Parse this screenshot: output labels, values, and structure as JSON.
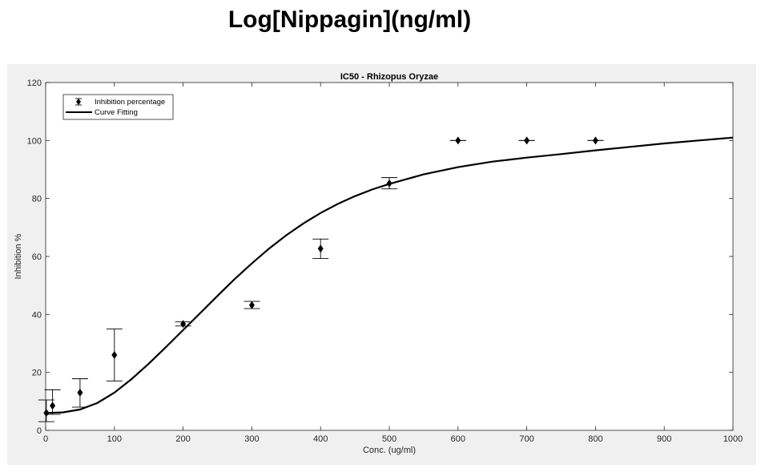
{
  "page": {
    "title": "Log[Nippagin](ng/ml)"
  },
  "chart_data": {
    "type": "scatter",
    "title": "IC50 - Rhizopus Oryzae",
    "xlabel": "Conc. (ug/ml)",
    "ylabel": "Inhibition %",
    "xlim": [
      0,
      1000
    ],
    "ylim": [
      0,
      120
    ],
    "xticks": [
      0,
      100,
      200,
      300,
      400,
      500,
      600,
      700,
      800,
      900,
      1000
    ],
    "yticks": [
      0,
      20,
      40,
      60,
      80,
      100,
      120
    ],
    "grid": false,
    "legend_position": "top-left",
    "legend": [
      "Inhibition percentage",
      "Curve Fitting"
    ],
    "series": [
      {
        "name": "Inhibition percentage",
        "marker": "diamond",
        "x": [
          1,
          10,
          50,
          100,
          200,
          300,
          400,
          500,
          600,
          700,
          800
        ],
        "y": [
          6,
          8.5,
          13,
          26,
          36.7,
          43.2,
          62.7,
          85.2,
          100,
          100,
          100
        ],
        "err_low": [
          3,
          5.5,
          8,
          17,
          36,
          42,
          59.3,
          83.3,
          100,
          100,
          100
        ],
        "err_high": [
          10.5,
          14,
          17.8,
          35,
          37.4,
          44.5,
          66,
          87.2,
          100,
          100,
          100
        ],
        "color": "#000000"
      },
      {
        "name": "Curve Fitting",
        "type": "line",
        "x": [
          0,
          25,
          50,
          75,
          100,
          125,
          150,
          175,
          200,
          225,
          250,
          275,
          300,
          325,
          350,
          375,
          400,
          425,
          450,
          475,
          500,
          550,
          600,
          650,
          700,
          750,
          800,
          850,
          900,
          950,
          1000
        ],
        "y": [
          6,
          6.2,
          7.2,
          9.4,
          13,
          17.7,
          23,
          28.7,
          34.6,
          40.5,
          46.4,
          52.2,
          57.6,
          62.7,
          67.3,
          71.4,
          75,
          78.1,
          80.8,
          83.1,
          85,
          88.3,
          90.8,
          92.7,
          94.1,
          95.3,
          96.6,
          97.8,
          99,
          100,
          101
        ],
        "color": "#000000"
      }
    ]
  }
}
